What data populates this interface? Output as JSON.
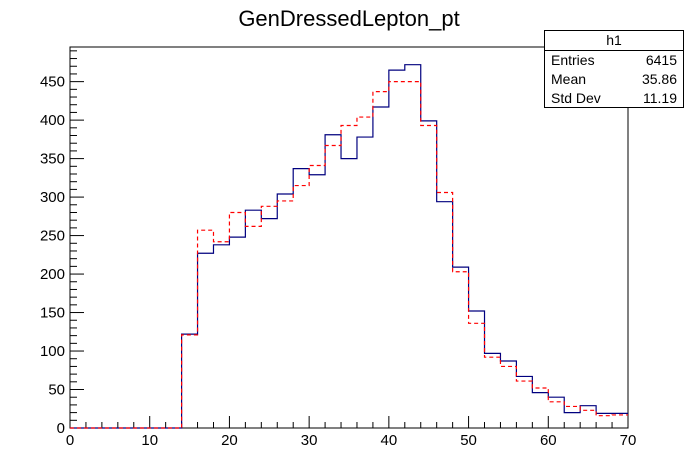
{
  "chart_data": {
    "type": "histogram",
    "title": "GenDressedLepton_pt",
    "xlim": [
      0,
      70
    ],
    "ylim": [
      0,
      495
    ],
    "bin_width": 2,
    "x_ticks": [
      0,
      10,
      20,
      30,
      40,
      50,
      60,
      70
    ],
    "y_ticks": [
      0,
      50,
      100,
      150,
      200,
      250,
      300,
      350,
      400,
      450
    ],
    "bin_edges": [
      0,
      2,
      4,
      6,
      8,
      10,
      12,
      14,
      16,
      18,
      20,
      22,
      24,
      26,
      28,
      30,
      32,
      34,
      36,
      38,
      40,
      42,
      44,
      46,
      48,
      50,
      52,
      54,
      56,
      58,
      60,
      62,
      64,
      66,
      68,
      70
    ],
    "series": [
      {
        "color": "#00007f",
        "style": "solid",
        "values": [
          0,
          0,
          0,
          0,
          0,
          0,
          0,
          122,
          227,
          238,
          248,
          283,
          272,
          304,
          337,
          329,
          381,
          350,
          378,
          417,
          465,
          472,
          399,
          294,
          209,
          152,
          97,
          87,
          67,
          46,
          40,
          20,
          29,
          19,
          19
        ]
      },
      {
        "color": "#ff0000",
        "style": "dashed",
        "values": [
          0,
          0,
          0,
          0,
          0,
          0,
          0,
          121,
          257,
          242,
          280,
          262,
          288,
          295,
          315,
          341,
          367,
          393,
          404,
          437,
          450,
          450,
          393,
          306,
          203,
          136,
          92,
          80,
          61,
          52,
          34,
          28,
          23,
          16,
          17
        ]
      }
    ],
    "stats_box": {
      "title": "h1",
      "rows": [
        {
          "label": "Entries",
          "value": "6415"
        },
        {
          "label": "Mean",
          "value": "35.86"
        },
        {
          "label": "Std Dev",
          "value": "11.19"
        }
      ]
    }
  }
}
